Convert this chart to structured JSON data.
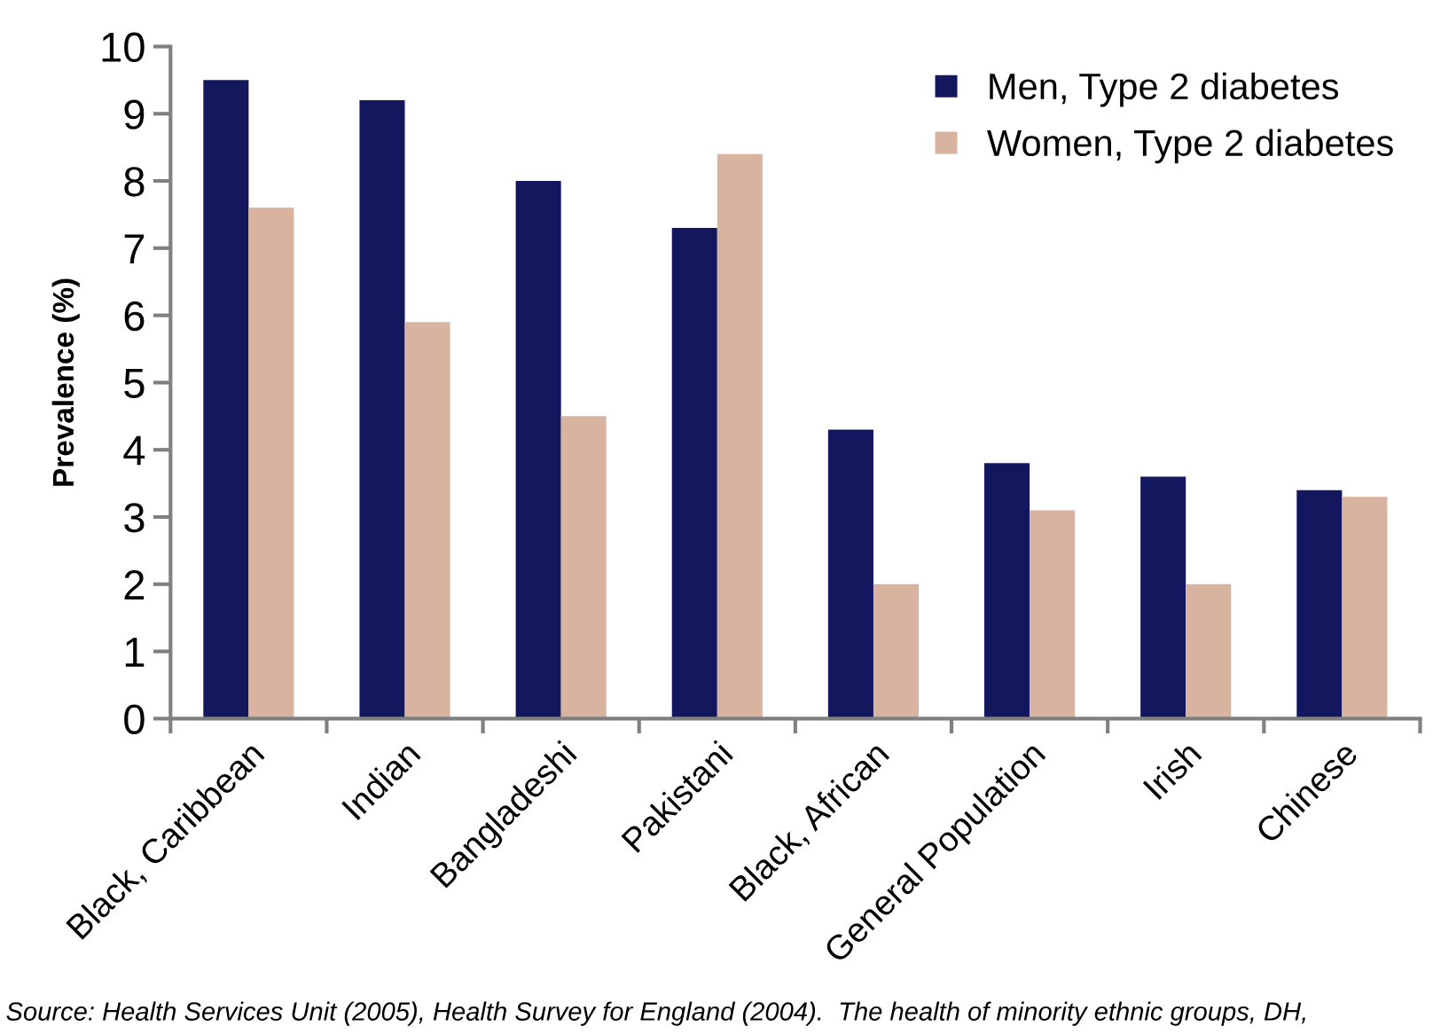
{
  "chart_data": {
    "type": "bar",
    "ylabel": "Prevalence (%)",
    "categories": [
      "Black, Caribbean",
      "Indian",
      "Bangladeshi",
      "Pakistani",
      "Black, African",
      "General Population",
      "Irish",
      "Chinese"
    ],
    "series": [
      {
        "name": "Men, Type 2 diabetes",
        "color": "#12175e",
        "values": [
          9.5,
          9.2,
          8.0,
          7.3,
          4.3,
          3.8,
          3.6,
          3.4
        ]
      },
      {
        "name": "Women, Type 2 diabetes",
        "color": "#d8b4a0",
        "values": [
          7.6,
          5.9,
          4.5,
          8.4,
          2.0,
          3.1,
          2.0,
          3.3
        ]
      }
    ],
    "ylim": [
      0,
      10
    ],
    "yticks": [
      0,
      1,
      2,
      3,
      4,
      5,
      6,
      7,
      8,
      9,
      10
    ],
    "legend": "top right",
    "marker": "square",
    "annotations": [
      "Source: Health Services Unit (2005), Health Survey for England (2004).  The health of minority ethnic groups, DH,"
    ]
  }
}
